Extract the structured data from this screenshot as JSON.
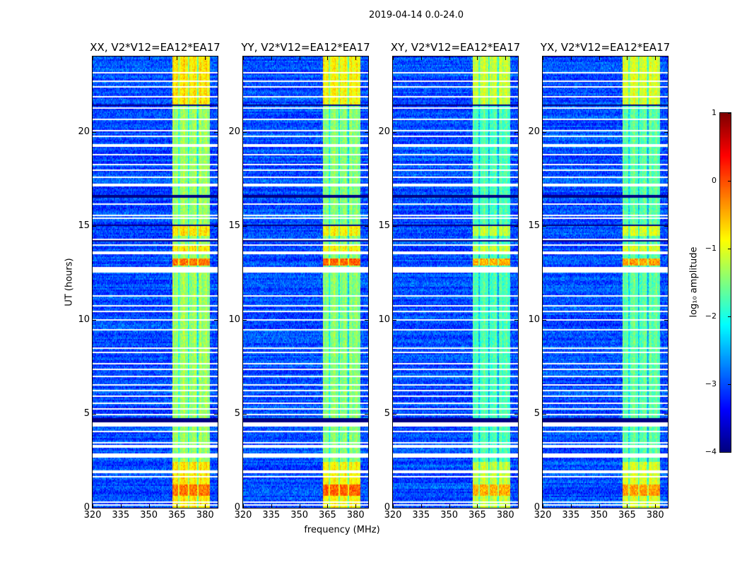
{
  "figure": {
    "suptitle": "2019-04-14 0.0-24.0",
    "xlabel": "frequency (MHz)",
    "ylabel": "UT (hours)",
    "colorbar_label": "log₁₀ amplitude"
  },
  "chart_data": {
    "type": "heatmap",
    "title": "2019-04-14 0.0-24.0",
    "xlabel": "frequency (MHz)",
    "ylabel": "UT (hours)",
    "xlim": [
      320,
      386.7
    ],
    "ylim": [
      0,
      24
    ],
    "xticks": [
      "320",
      "335",
      "350",
      "365",
      "380"
    ],
    "xtick_values": [
      320,
      335,
      350,
      365,
      380
    ],
    "yticks": [
      "0",
      "5",
      "10",
      "15",
      "20"
    ],
    "ytick_values": [
      0,
      5,
      10,
      15,
      20
    ],
    "colormap": "jet",
    "colorbar": {
      "label": "log10 amplitude",
      "range": [
        -4,
        1
      ],
      "ticks": [
        "1",
        "0",
        "−1",
        "−2",
        "−3",
        "−4"
      ],
      "tick_values": [
        1,
        0,
        -1,
        -2,
        -3,
        -4
      ]
    },
    "panels": [
      {
        "title": "XX, V2*V12=EA12*EA17",
        "band_level": -1.2,
        "hot_level": -0.2
      },
      {
        "title": "YY, V2*V12=EA12*EA17",
        "band_level": -1.3,
        "hot_level": -0.1
      },
      {
        "title": "XY, V2*V12=EA12*EA17",
        "band_level": -1.6,
        "hot_level": -0.5
      },
      {
        "title": "YX, V2*V12=EA12*EA17",
        "band_level": -1.5,
        "hot_level": -0.4
      }
    ],
    "background_level": -3.0,
    "band_mhz": [
      362.3,
      382.5
    ],
    "band_gaps_mhz": [
      365.8,
      371.0,
      376.0
    ],
    "hot_time_ranges_h": [
      [
        0.7,
        1.3
      ],
      [
        12.9,
        13.3
      ]
    ],
    "bright_time_ranges_h": [
      [
        0,
        2.5
      ],
      [
        13.7,
        14.0
      ],
      [
        14.5,
        15.0
      ],
      [
        21.5,
        24
      ]
    ],
    "flagged_times_h": [
      0.2,
      0.35,
      1.7,
      1.95,
      2.75,
      2.85,
      3.3,
      3.5,
      4.1,
      4.4,
      4.5,
      5.0,
      5.3,
      5.6,
      5.95,
      6.25,
      6.6,
      7.0,
      7.4,
      7.7,
      8.3,
      8.5,
      9.5,
      10.0,
      10.5,
      10.8,
      11.3,
      12.6,
      12.7,
      12.8,
      13.6,
      14.0,
      14.3,
      15.45,
      15.6,
      16.2,
      17.2,
      17.6,
      18.0,
      18.3,
      18.8,
      19.3,
      19.8,
      20.1,
      20.7,
      21.3,
      21.9,
      22.4,
      22.7,
      23.2
    ],
    "dropout_time_ranges_h": [
      [
        4.6,
        4.8
      ],
      [
        16.5,
        16.7
      ],
      [
        21.4,
        21.45
      ],
      [
        15.05,
        15.1
      ],
      [
        14.2,
        14.25
      ]
    ]
  }
}
